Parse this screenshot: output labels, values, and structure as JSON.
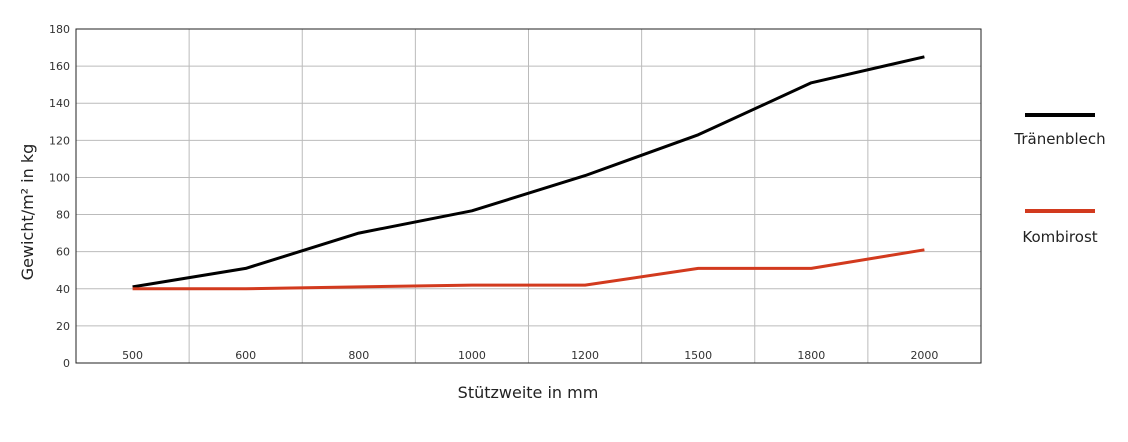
{
  "chart_data": {
    "type": "line",
    "xlabel": "Stützweite in mm",
    "ylabel": "Gewicht/m² in kg",
    "categories": [
      "500",
      "600",
      "800",
      "1000",
      "1200",
      "1500",
      "1800",
      "2000"
    ],
    "ylim": [
      0,
      180
    ],
    "yticks": [
      0,
      20,
      40,
      60,
      80,
      100,
      120,
      140,
      160,
      180
    ],
    "grid": true,
    "legend_position": "right",
    "series": [
      {
        "name": "Tränenblech",
        "color": "#000000",
        "points": [
          [
            500,
            41
          ],
          [
            600,
            51
          ],
          [
            800,
            70
          ],
          [
            1000,
            82
          ],
          [
            1200,
            101
          ],
          [
            1500,
            123
          ],
          [
            1800,
            151
          ],
          [
            2000,
            165
          ]
        ]
      },
      {
        "name": "Kombirost",
        "color": "#d23a1e",
        "points": [
          [
            500,
            40
          ],
          [
            600,
            40
          ],
          [
            800,
            41
          ],
          [
            1000,
            42
          ],
          [
            1200,
            42
          ],
          [
            1500,
            51
          ],
          [
            1800,
            51
          ],
          [
            2000,
            61
          ]
        ]
      }
    ]
  }
}
